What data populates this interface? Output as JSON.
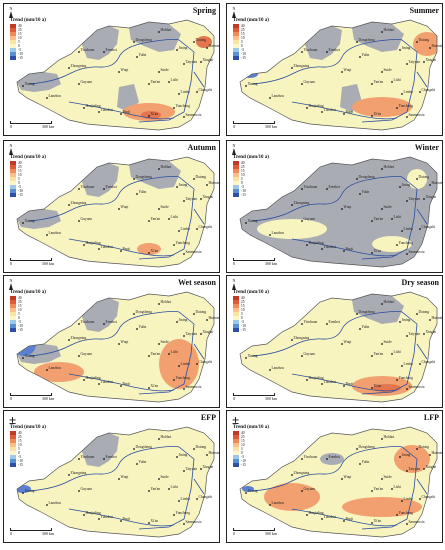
{
  "legend": {
    "title": "Trend (mm/10 a)",
    "levels": [
      "40",
      "25",
      "15",
      "10",
      "5",
      "0",
      "-5",
      "-10",
      "-15"
    ],
    "colors": [
      "#c0392b",
      "#e05a3a",
      "#f08a5a",
      "#f7c08a",
      "#fbe3a6",
      "#fdf6c8",
      "#9ec9e6",
      "#5b8fd0",
      "#2c4fa8"
    ]
  },
  "colors": {
    "grey_region": "#a9acb3",
    "light_yellow": "#f8f4c0",
    "orange": "#f2a070",
    "red_orange": "#e5754e",
    "blue": "#5b7fd1",
    "river": "#2b4f9e",
    "boundary": "#555555"
  },
  "scale": {
    "zero": "0",
    "distance": "300 km"
  },
  "north_label": "N",
  "north_symbol": "±",
  "cities": [
    "Xining",
    "Lanzhou",
    "Guyuan",
    "Huajialing",
    "Tianshui",
    "Baoji",
    "Xi'an",
    "Yan'an",
    "Yulin",
    "Wuqi",
    "Suide",
    "Lishi",
    "Taiyuan",
    "Linfen",
    "Yuncheng",
    "Changzhi",
    "Sanmenxia",
    "Xingtai",
    "Erenhot",
    "Dongsheng",
    "Hohhot",
    "Datong",
    "Jining",
    "Yinchuan",
    "Zhongning",
    "Huimin"
  ],
  "panels": [
    {
      "title": "Spring"
    },
    {
      "title": "Summer"
    },
    {
      "title": "Autumn"
    },
    {
      "title": "Winter"
    },
    {
      "title": "Wet season"
    },
    {
      "title": "Dry season"
    },
    {
      "title": "EFP"
    },
    {
      "title": "LFP"
    }
  ]
}
